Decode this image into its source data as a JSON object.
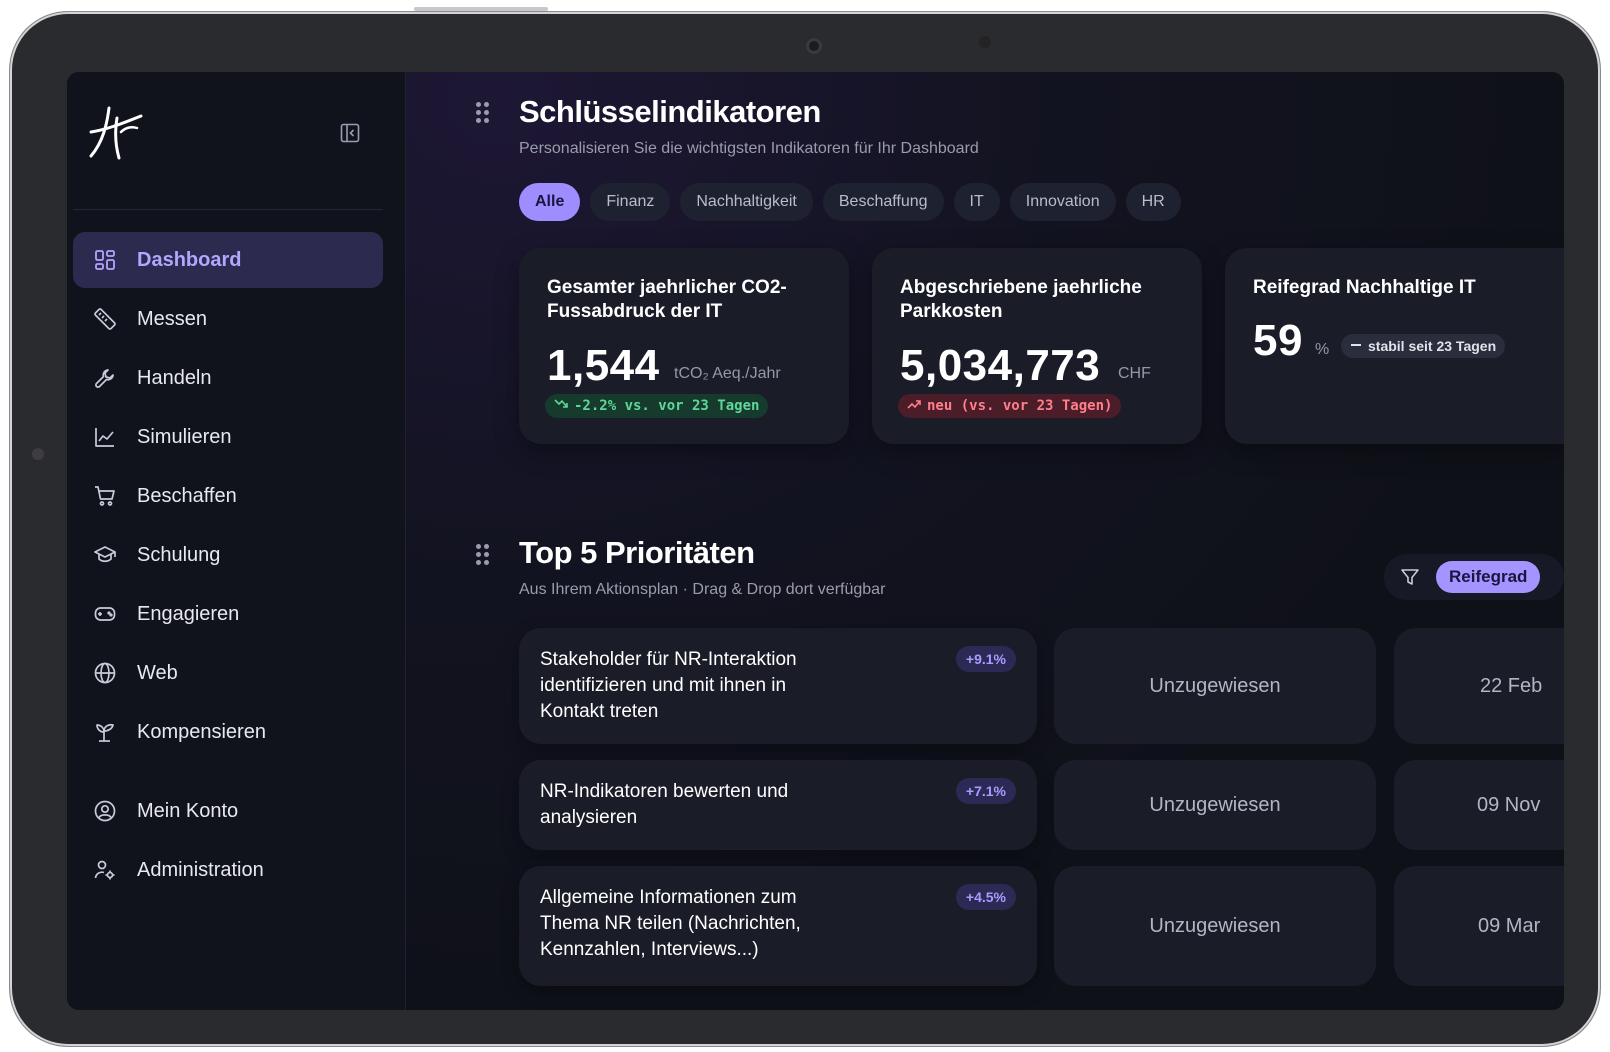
{
  "sidebar": {
    "logo_icon": "hf-monogram-logo",
    "collapse_icon": "sidebar-collapse-icon",
    "items": [
      {
        "label": "Dashboard",
        "icon": "grid-icon",
        "active": true
      },
      {
        "label": "Messen",
        "icon": "ruler-icon"
      },
      {
        "label": "Handeln",
        "icon": "wrench-icon"
      },
      {
        "label": "Simulieren",
        "icon": "line-chart-icon"
      },
      {
        "label": "Beschaffen",
        "icon": "cart-icon"
      },
      {
        "label": "Schulung",
        "icon": "graduation-cap-icon"
      },
      {
        "label": "Engagieren",
        "icon": "gamepad-icon"
      },
      {
        "label": "Web",
        "icon": "globe-icon"
      },
      {
        "label": "Kompensieren",
        "icon": "sprout-icon"
      }
    ],
    "account_items": [
      {
        "label": "Mein Konto",
        "icon": "user-circle-icon"
      },
      {
        "label": "Administration",
        "icon": "user-cog-icon"
      }
    ]
  },
  "kpi_section": {
    "title": "Schlüsselindikatoren",
    "subtitle": "Personalisieren Sie die wichtigsten Indikatoren für Ihr Dashboard",
    "filters": [
      "Alle",
      "Finanz",
      "Nachhaltigkeit",
      "Beschaffung",
      "IT",
      "Innovation",
      "HR"
    ],
    "active_filter": "Alle",
    "cards": [
      {
        "title": "Gesamter jaehrlicher CO2-Fussabdruck der IT",
        "value": "1,544",
        "unit": "tCO₂ Aeq./Jahr",
        "badge": "-2.2% vs. vor 23 Tagen",
        "badge_type": "green"
      },
      {
        "title": "Abgeschriebene jaehrliche Parkkosten",
        "value": "5,034,773",
        "unit": "CHF",
        "badge": "neu (vs. vor 23 Tagen)",
        "badge_type": "red"
      },
      {
        "title": "Reifegrad Nachhaltige IT",
        "value": "59",
        "unit": "%",
        "badge": "stabil seit 23 Tagen",
        "badge_type": "grey"
      }
    ]
  },
  "priorities": {
    "title": "Top 5 Prioritäten",
    "subtitle": "Aus Ihrem Aktionsplan · Drag & Drop dort verfügbar",
    "sort_label": "Reifegrad",
    "rows": [
      {
        "text": "Stakeholder für NR-Interaktion identifizieren und mit ihnen in Kontakt treten",
        "pct": "+9.1%",
        "assignee": "Unzugewiesen",
        "date": "22 Feb"
      },
      {
        "text": "NR-Indikatoren bewerten und analysieren",
        "pct": "+7.1%",
        "assignee": "Unzugewiesen",
        "date": "09 Nov"
      },
      {
        "text": "Allgemeine Informationen zum Thema NR teilen (Nachrichten, Kennzahlen, Interviews...)",
        "pct": "+4.5%",
        "assignee": "Unzugewiesen",
        "date": "09 Mar"
      }
    ]
  },
  "colors": {
    "accent": "#9d8dff",
    "background": "#0f1119",
    "card": "#1a1c28"
  }
}
